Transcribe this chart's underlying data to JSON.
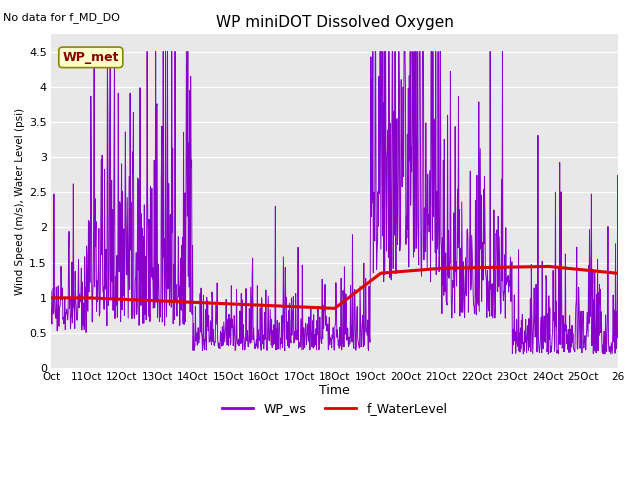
{
  "title": "WP miniDOT Dissolved Oxygen",
  "subtitle": "No data for f_MD_DO",
  "xlabel": "Time",
  "ylabel": "Wind Speed (m/s), Water Level (psi)",
  "ylim": [
    0.0,
    4.75
  ],
  "yticks": [
    0.0,
    0.5,
    1.0,
    1.5,
    2.0,
    2.5,
    3.0,
    3.5,
    4.0,
    4.5
  ],
  "xtick_labels": [
    "Oct 1",
    "1Oct",
    "12Oct",
    "13Oct",
    "14Oct",
    "15Oct",
    "16Oct",
    "17Oct",
    "18Oct",
    "19Oct",
    "20Oct",
    "21Oct",
    "22Oct",
    "23Oct",
    "24Oct",
    "25Oct",
    "26"
  ],
  "bg_color": "#e8e8e8",
  "ws_color": "#8800cc",
  "wl_color": "#dd0000",
  "legend_box_facecolor": "#ffffcc",
  "legend_box_edgecolor": "#888800",
  "legend_box_text": "WP_met",
  "legend_items": [
    "WP_ws",
    "f_WaterLevel"
  ],
  "grid_color": "#ffffff"
}
